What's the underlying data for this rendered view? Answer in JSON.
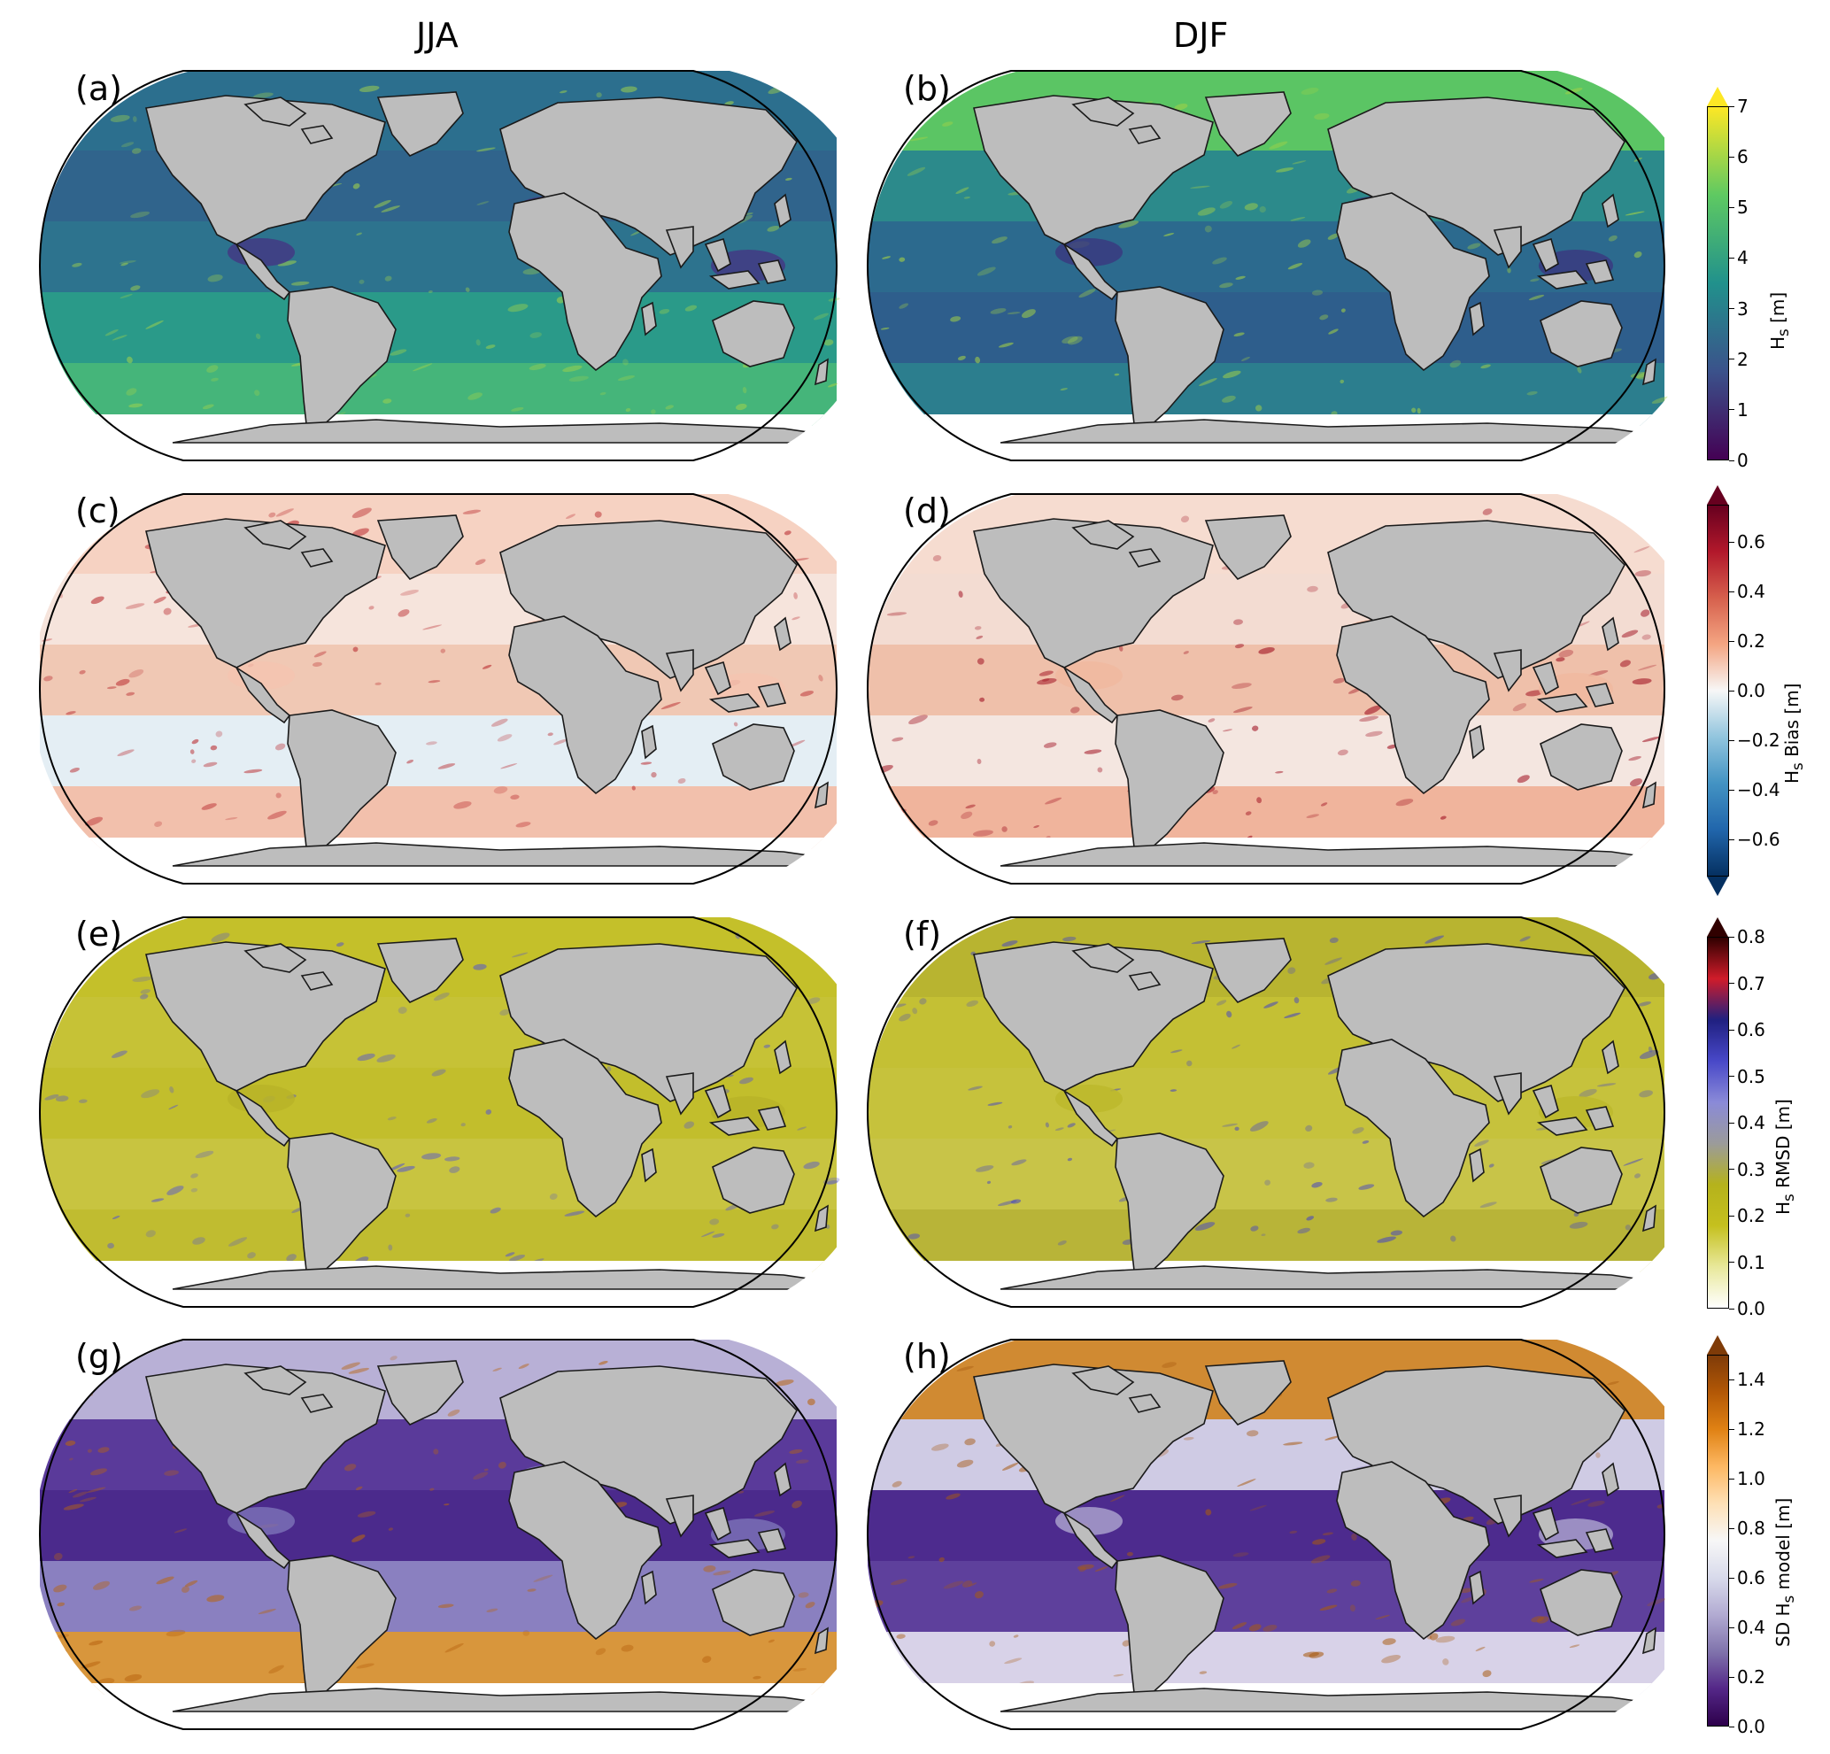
{
  "columns": [
    "JJA",
    "DJF"
  ],
  "panels": [
    {
      "label": "(a)",
      "row": 0,
      "col": 0,
      "field": "hs_jja"
    },
    {
      "label": "(b)",
      "row": 0,
      "col": 1,
      "field": "hs_djf"
    },
    {
      "label": "(c)",
      "row": 1,
      "col": 0,
      "field": "bias_jja"
    },
    {
      "label": "(d)",
      "row": 1,
      "col": 1,
      "field": "bias_djf"
    },
    {
      "label": "(e)",
      "row": 2,
      "col": 0,
      "field": "rmsd_jja"
    },
    {
      "label": "(f)",
      "row": 2,
      "col": 1,
      "field": "rmsd_djf"
    },
    {
      "label": "(g)",
      "row": 3,
      "col": 0,
      "field": "sd_jja"
    },
    {
      "label": "(h)",
      "row": 3,
      "col": 1,
      "field": "sd_djf"
    }
  ],
  "colorbars": [
    {
      "title_main": "H",
      "title_sub": "s",
      "title_rest": " [m]",
      "ticks": [
        "7",
        "6",
        "5",
        "4",
        "3",
        "2",
        "1",
        "0"
      ],
      "range": [
        0,
        7
      ],
      "extend": "max",
      "colors": [
        "#440154",
        "#3b528b",
        "#21918c",
        "#5ec962",
        "#fde725"
      ]
    },
    {
      "title_main": "H",
      "title_sub": "s",
      "title_rest": " Bias [m]",
      "ticks": [
        "0.6",
        "0.4",
        "0.2",
        "0.0",
        "−0.2",
        "−0.4",
        "−0.6"
      ],
      "range": [
        -0.75,
        0.75
      ],
      "extend": "both",
      "colors": [
        "#053061",
        "#2166ac",
        "#4393c3",
        "#92c5de",
        "#f7f7f7",
        "#f4a582",
        "#d6604d",
        "#b2182b",
        "#67001f"
      ]
    },
    {
      "title_main": "H",
      "title_sub": "s",
      "title_rest": " RMSD [m]",
      "ticks": [
        "0.8",
        "0.7",
        "0.6",
        "0.5",
        "0.4",
        "0.3",
        "0.2",
        "0.1",
        "0.0"
      ],
      "range": [
        0,
        0.8
      ],
      "extend": "max",
      "colors": [
        "#ffffff",
        "#e8e89a",
        "#c5c01e",
        "#b5b21c",
        "#9b9b9b",
        "#8a8ad8",
        "#4848c8",
        "#202080",
        "#d01c2a",
        "#300000"
      ]
    },
    {
      "title_main": "SD H",
      "title_sub": "s",
      "title_rest": " model [m]",
      "ticks": [
        "1.4",
        "1.2",
        "1.0",
        "0.8",
        "0.6",
        "0.4",
        "0.2",
        "0.0"
      ],
      "range": [
        0,
        1.5
      ],
      "extend": "max",
      "colors": [
        "#2d004b",
        "#542788",
        "#8073ac",
        "#b2abd2",
        "#d8daeb",
        "#f7f7f7",
        "#fee0b6",
        "#fdb863",
        "#e08214",
        "#b35806",
        "#7f3b08"
      ]
    }
  ],
  "fields": {
    "hs_jja": {
      "ocean": [
        "#2c6f8e",
        "#30648c",
        "#2d738e",
        "#2a9a89",
        "#45b57a"
      ],
      "accent": "#a3d34a",
      "enclosed": "#433a84"
    },
    "hs_djf": {
      "ocean": [
        "#5bc564",
        "#2c8a8b",
        "#2c6a8e",
        "#2e5e8c",
        "#2c7e8e"
      ],
      "accent": "#a7d344",
      "enclosed": "#3a3a80"
    },
    "bias_jja": {
      "ocean": [
        "#f6d2c2",
        "#f6e4dc",
        "#f0c8b4",
        "#e4eef4",
        "#f2c0ac"
      ],
      "accent": "#b8272c",
      "enclosed": "#f4c4b0"
    },
    "bias_djf": {
      "ocean": [
        "#f6dcd0",
        "#f3dcd2",
        "#efc0aa",
        "#f4e6e0",
        "#f0b49c"
      ],
      "accent": "#a01020",
      "enclosed": "#f0b8a0"
    },
    "rmsd_jja": {
      "ocean": [
        "#c4c02a",
        "#c6c236",
        "#c2be2c",
        "#c8c440",
        "#c0bc30"
      ],
      "accent": "#5a5ac8",
      "enclosed": "#b8b428"
    },
    "rmsd_djf": {
      "ocean": [
        "#b8b430",
        "#c4c034",
        "#c6c23c",
        "#c8c448",
        "#b8b438"
      ],
      "accent": "#4848c0",
      "enclosed": "#bcb82c"
    },
    "sd_jja": {
      "ocean": [
        "#b8b0d6",
        "#5a3a9a",
        "#4b2a8c",
        "#8a80c0",
        "#d8963c"
      ],
      "accent": "#b86410",
      "enclosed": "#7a70b6"
    },
    "sd_djf": {
      "ocean": [
        "#d08a32",
        "#cfcbe4",
        "#4d2b8e",
        "#5e409c",
        "#d8d2e8"
      ],
      "accent": "#a85a10",
      "enclosed": "#a9a0cc"
    }
  }
}
